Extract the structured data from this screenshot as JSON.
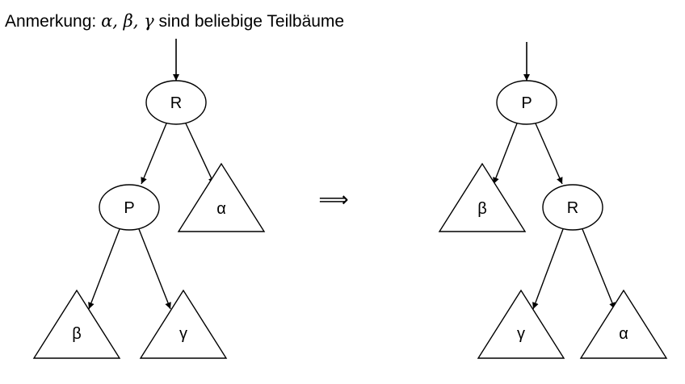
{
  "note": {
    "prefix": "Anmerkung:",
    "math": "α, β, γ",
    "suffix": "sind beliebige Teilbäume"
  },
  "left_tree": {
    "root": "R",
    "child": "P",
    "subtrees": {
      "alpha": "α",
      "beta": "β",
      "gamma": "γ"
    }
  },
  "transform_arrow": "⟹",
  "right_tree": {
    "root": "P",
    "child": "R",
    "subtrees": {
      "beta": "β",
      "gamma": "γ",
      "alpha": "α"
    }
  },
  "colors": {
    "stroke": "#000000",
    "background": "#ffffff"
  }
}
